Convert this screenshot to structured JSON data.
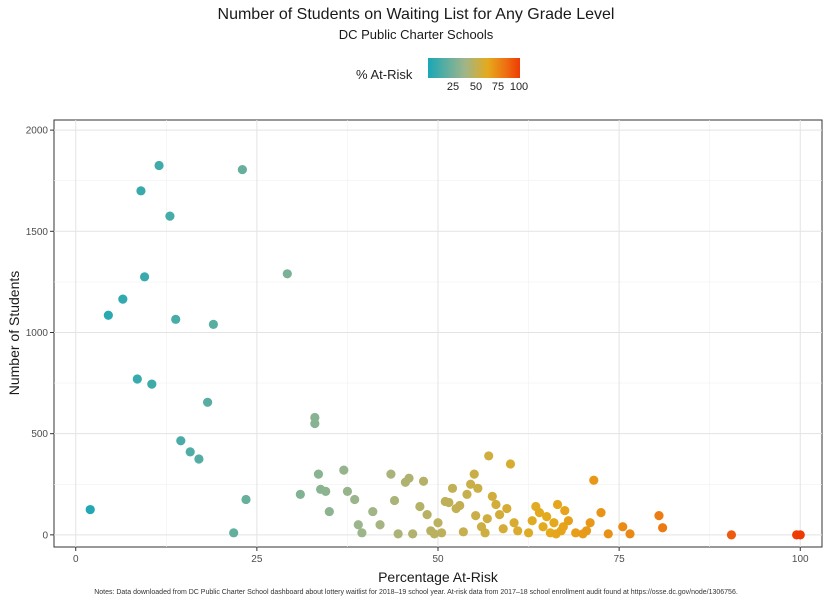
{
  "chart_data": {
    "type": "scatter",
    "title": "Number of Students on Waiting List for Any Grade Level",
    "subtitle": "DC Public Charter Schools",
    "xlabel": "Percentage At-Risk",
    "ylabel": "Number of Students",
    "xlim": [
      -3,
      103
    ],
    "ylim": [
      -60,
      2050
    ],
    "x_ticks": [
      0,
      25,
      50,
      75,
      100
    ],
    "y_ticks": [
      0,
      500,
      1000,
      1500,
      2000
    ],
    "grid": true,
    "legend": {
      "title": "% At-Risk",
      "ticks": [
        25,
        50,
        75,
        100
      ],
      "placement": "top-center",
      "colors": {
        "low": "#1aa7b6",
        "mid_low": "#9fb58a",
        "mid": "#e5aa1c",
        "high": "#ee6e10",
        "max": "#ee3b05"
      }
    },
    "points": [
      {
        "x": 2,
        "y": 125
      },
      {
        "x": 4.5,
        "y": 1085
      },
      {
        "x": 6.5,
        "y": 1165
      },
      {
        "x": 8.5,
        "y": 770
      },
      {
        "x": 9,
        "y": 1700
      },
      {
        "x": 9.5,
        "y": 1275
      },
      {
        "x": 10.5,
        "y": 745
      },
      {
        "x": 11.5,
        "y": 1825
      },
      {
        "x": 13,
        "y": 1575
      },
      {
        "x": 13.8,
        "y": 1065
      },
      {
        "x": 14.5,
        "y": 465
      },
      {
        "x": 15.8,
        "y": 410
      },
      {
        "x": 17,
        "y": 375
      },
      {
        "x": 18.2,
        "y": 655
      },
      {
        "x": 19,
        "y": 1040
      },
      {
        "x": 21.8,
        "y": 10
      },
      {
        "x": 23,
        "y": 1805
      },
      {
        "x": 23.5,
        "y": 175
      },
      {
        "x": 29.2,
        "y": 1290
      },
      {
        "x": 31,
        "y": 200
      },
      {
        "x": 33,
        "y": 580
      },
      {
        "x": 33,
        "y": 550
      },
      {
        "x": 33.5,
        "y": 300
      },
      {
        "x": 33.8,
        "y": 225
      },
      {
        "x": 34.5,
        "y": 215
      },
      {
        "x": 35,
        "y": 115
      },
      {
        "x": 37,
        "y": 320
      },
      {
        "x": 37.5,
        "y": 215
      },
      {
        "x": 38.5,
        "y": 175
      },
      {
        "x": 39,
        "y": 50
      },
      {
        "x": 39.5,
        "y": 10
      },
      {
        "x": 41,
        "y": 115
      },
      {
        "x": 42,
        "y": 50
      },
      {
        "x": 43.5,
        "y": 300
      },
      {
        "x": 44,
        "y": 170
      },
      {
        "x": 44.5,
        "y": 5
      },
      {
        "x": 45.5,
        "y": 260
      },
      {
        "x": 46,
        "y": 280
      },
      {
        "x": 46.5,
        "y": 5
      },
      {
        "x": 47.5,
        "y": 140
      },
      {
        "x": 48,
        "y": 265
      },
      {
        "x": 48.5,
        "y": 100
      },
      {
        "x": 49,
        "y": 20
      },
      {
        "x": 49.5,
        "y": 5
      },
      {
        "x": 50,
        "y": 60
      },
      {
        "x": 50.5,
        "y": 10
      },
      {
        "x": 51,
        "y": 165
      },
      {
        "x": 51.5,
        "y": 160
      },
      {
        "x": 52,
        "y": 230
      },
      {
        "x": 52.5,
        "y": 130
      },
      {
        "x": 53,
        "y": 145
      },
      {
        "x": 53.5,
        "y": 15
      },
      {
        "x": 54,
        "y": 200
      },
      {
        "x": 54.5,
        "y": 250
      },
      {
        "x": 55,
        "y": 300
      },
      {
        "x": 55.2,
        "y": 95
      },
      {
        "x": 55.5,
        "y": 230
      },
      {
        "x": 56,
        "y": 40
      },
      {
        "x": 56.5,
        "y": 10
      },
      {
        "x": 56.8,
        "y": 80
      },
      {
        "x": 57,
        "y": 390
      },
      {
        "x": 57.5,
        "y": 190
      },
      {
        "x": 58,
        "y": 150
      },
      {
        "x": 58.5,
        "y": 100
      },
      {
        "x": 59,
        "y": 30
      },
      {
        "x": 59.5,
        "y": 130
      },
      {
        "x": 60,
        "y": 350
      },
      {
        "x": 60.5,
        "y": 60
      },
      {
        "x": 61,
        "y": 20
      },
      {
        "x": 62.5,
        "y": 10
      },
      {
        "x": 63,
        "y": 70
      },
      {
        "x": 63.5,
        "y": 140
      },
      {
        "x": 64,
        "y": 110
      },
      {
        "x": 64.5,
        "y": 40
      },
      {
        "x": 65,
        "y": 90
      },
      {
        "x": 65.5,
        "y": 10
      },
      {
        "x": 66,
        "y": 60
      },
      {
        "x": 66.3,
        "y": 5
      },
      {
        "x": 66.5,
        "y": 150
      },
      {
        "x": 67,
        "y": 20
      },
      {
        "x": 67.3,
        "y": 40
      },
      {
        "x": 67.5,
        "y": 120
      },
      {
        "x": 68,
        "y": 70
      },
      {
        "x": 69,
        "y": 10
      },
      {
        "x": 70,
        "y": 5
      },
      {
        "x": 70.5,
        "y": 20
      },
      {
        "x": 71,
        "y": 60
      },
      {
        "x": 71.5,
        "y": 270
      },
      {
        "x": 72.5,
        "y": 110
      },
      {
        "x": 73.5,
        "y": 5
      },
      {
        "x": 75.5,
        "y": 40
      },
      {
        "x": 76.5,
        "y": 5
      },
      {
        "x": 80.5,
        "y": 95
      },
      {
        "x": 81,
        "y": 35
      },
      {
        "x": 90.5,
        "y": 0
      },
      {
        "x": 99.5,
        "y": 0
      },
      {
        "x": 100,
        "y": 0
      }
    ]
  },
  "footnote": "Notes: Data downloaded from DC Public Charter School dashboard about lottery waitlist for 2018–19 school year. At-risk data from 2017–18 school enrollment audit found at https://osse.dc.gov/node/1306756."
}
